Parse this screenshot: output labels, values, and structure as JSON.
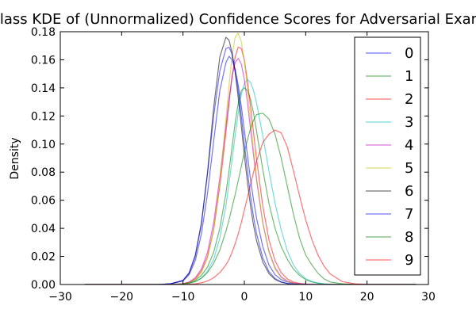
{
  "chart_data": {
    "type": "line",
    "title": "Per-class KDE of (Unnormalized) Confidence Scores for Adversarial Examples",
    "xlabel": "",
    "ylabel": "Density",
    "xlim": [
      -30,
      30
    ],
    "ylim": [
      0,
      0.18
    ],
    "xticks": [
      -30,
      -20,
      -10,
      0,
      10,
      20,
      30
    ],
    "yticks": [
      0.0,
      0.02,
      0.04,
      0.06,
      0.08,
      0.1,
      0.12,
      0.14,
      0.16,
      0.18
    ],
    "xtick_labels": [
      "−30",
      "−20",
      "−10",
      "0",
      "10",
      "20",
      "30"
    ],
    "ytick_labels": [
      "0.00",
      "0.02",
      "0.04",
      "0.06",
      "0.08",
      "0.10",
      "0.12",
      "0.14",
      "0.16",
      "0.18"
    ],
    "grid": false,
    "legend_position": "upper-right",
    "x": [
      -26,
      -22,
      -18,
      -14,
      -12,
      -10,
      -9,
      -8,
      -7,
      -6,
      -5,
      -4,
      -3,
      -2.5,
      -2,
      -1.5,
      -1,
      -0.5,
      0,
      0.5,
      1,
      1.5,
      2,
      3,
      4,
      5,
      6,
      7,
      8,
      9,
      10,
      11,
      12,
      13,
      14,
      16,
      18,
      20,
      22,
      24,
      26,
      28
    ],
    "series": [
      {
        "name": "0",
        "color": "#0000ff",
        "values": [
          0.0,
          0.0,
          0.0,
          0.0,
          0.0005,
          0.0025,
          0.007,
          0.017,
          0.036,
          0.065,
          0.102,
          0.138,
          0.158,
          0.1625,
          0.16,
          0.153,
          0.142,
          0.127,
          0.11,
          0.092,
          0.075,
          0.06,
          0.047,
          0.027,
          0.014,
          0.007,
          0.0035,
          0.0018,
          0.0009,
          0.0004,
          0.0002,
          0.0001,
          0.0,
          0.0,
          0.0,
          0.0,
          0.0,
          0.0,
          0.0,
          0.0,
          0.0,
          0.0
        ]
      },
      {
        "name": "1",
        "color": "#008000",
        "values": [
          0.0,
          0.0,
          0.0,
          0.0,
          0.0,
          0.0005,
          0.0012,
          0.003,
          0.0065,
          0.0125,
          0.023,
          0.04,
          0.065,
          0.081,
          0.098,
          0.115,
          0.129,
          0.138,
          0.14,
          0.138,
          0.132,
          0.122,
          0.109,
          0.082,
          0.058,
          0.04,
          0.027,
          0.018,
          0.011,
          0.0065,
          0.0035,
          0.0018,
          0.0009,
          0.0004,
          0.0002,
          0.0001,
          0.0,
          0.0,
          0.0,
          0.0,
          0.0,
          0.0
        ]
      },
      {
        "name": "2",
        "color": "#ff0000",
        "values": [
          0.0,
          0.0,
          0.0,
          0.0,
          0.0,
          0.0005,
          0.0015,
          0.004,
          0.0095,
          0.02,
          0.039,
          0.07,
          0.108,
          0.129,
          0.148,
          0.162,
          0.169,
          0.168,
          0.16,
          0.145,
          0.127,
          0.108,
          0.089,
          0.056,
          0.032,
          0.017,
          0.0085,
          0.004,
          0.0018,
          0.0008,
          0.0003,
          0.0001,
          0.0,
          0.0,
          0.0,
          0.0,
          0.0,
          0.0,
          0.0,
          0.0,
          0.0,
          0.0
        ]
      },
      {
        "name": "3",
        "color": "#00bfbf",
        "values": [
          0.0,
          0.0,
          0.0,
          0.0,
          0.0,
          0.0003,
          0.0008,
          0.002,
          0.0045,
          0.0095,
          0.018,
          0.033,
          0.056,
          0.072,
          0.089,
          0.106,
          0.122,
          0.135,
          0.143,
          0.146,
          0.144,
          0.138,
          0.129,
          0.106,
          0.081,
          0.058,
          0.039,
          0.024,
          0.014,
          0.0078,
          0.0042,
          0.0022,
          0.0011,
          0.0005,
          0.0002,
          0.0001,
          0.0,
          0.0,
          0.0,
          0.0,
          0.0,
          0.0
        ]
      },
      {
        "name": "4",
        "color": "#bf00bf",
        "values": [
          0.0,
          0.0,
          0.0,
          0.0,
          0.0,
          0.0006,
          0.0018,
          0.0048,
          0.011,
          0.023,
          0.044,
          0.076,
          0.113,
          0.132,
          0.148,
          0.158,
          0.161,
          0.157,
          0.146,
          0.13,
          0.111,
          0.092,
          0.074,
          0.044,
          0.024,
          0.012,
          0.0056,
          0.0025,
          0.0011,
          0.0005,
          0.0002,
          0.0001,
          0.0,
          0.0,
          0.0,
          0.0,
          0.0,
          0.0,
          0.0,
          0.0,
          0.0,
          0.0
        ]
      },
      {
        "name": "5",
        "color": "#bfbf00",
        "values": [
          0.0,
          0.0,
          0.0,
          0.0,
          0.0,
          0.0004,
          0.0012,
          0.0034,
          0.0085,
          0.019,
          0.039,
          0.073,
          0.118,
          0.142,
          0.163,
          0.176,
          0.179,
          0.173,
          0.159,
          0.14,
          0.118,
          0.096,
          0.076,
          0.044,
          0.023,
          0.011,
          0.0048,
          0.002,
          0.0008,
          0.0003,
          0.0001,
          0.0,
          0.0,
          0.0,
          0.0,
          0.0,
          0.0,
          0.0,
          0.0,
          0.0,
          0.0,
          0.0
        ]
      },
      {
        "name": "6",
        "color": "#000000",
        "values": [
          0.0,
          0.0,
          0.0,
          0.0,
          0.0005,
          0.0028,
          0.008,
          0.02,
          0.043,
          0.08,
          0.126,
          0.162,
          0.176,
          0.174,
          0.165,
          0.151,
          0.133,
          0.113,
          0.092,
          0.073,
          0.056,
          0.042,
          0.031,
          0.016,
          0.0078,
          0.0036,
          0.0016,
          0.0007,
          0.0003,
          0.0001,
          0.0,
          0.0,
          0.0,
          0.0,
          0.0,
          0.0,
          0.0,
          0.0,
          0.0,
          0.0,
          0.0,
          0.0
        ]
      },
      {
        "name": "7",
        "color": "#0000ff",
        "values": [
          0.0,
          0.0,
          0.0,
          0.0,
          0.0006,
          0.003,
          0.0085,
          0.021,
          0.044,
          0.079,
          0.12,
          0.152,
          0.168,
          0.169,
          0.164,
          0.153,
          0.138,
          0.12,
          0.1,
          0.081,
          0.063,
          0.048,
          0.036,
          0.019,
          0.0093,
          0.0043,
          0.0019,
          0.0008,
          0.0003,
          0.0001,
          0.0,
          0.0,
          0.0,
          0.0,
          0.0,
          0.0,
          0.0,
          0.0,
          0.0,
          0.0,
          0.0,
          0.0
        ]
      },
      {
        "name": "8",
        "color": "#008000",
        "values": [
          0.0,
          0.0,
          0.0,
          0.0,
          0.0,
          0.0004,
          0.001,
          0.0022,
          0.0045,
          0.0085,
          0.015,
          0.0245,
          0.038,
          0.046,
          0.055,
          0.064,
          0.074,
          0.084,
          0.094,
          0.103,
          0.111,
          0.117,
          0.121,
          0.122,
          0.118,
          0.107,
          0.09,
          0.07,
          0.05,
          0.033,
          0.021,
          0.014,
          0.008,
          0.004,
          0.0018,
          0.0005,
          0.0001,
          0.0,
          0.0,
          0.0,
          0.0,
          0.0
        ]
      },
      {
        "name": "9",
        "color": "#ff0000",
        "values": [
          0.0,
          0.0,
          0.0,
          0.0,
          0.0,
          0.0,
          0.0002,
          0.0005,
          0.0012,
          0.0025,
          0.0048,
          0.0085,
          0.014,
          0.018,
          0.023,
          0.029,
          0.036,
          0.044,
          0.053,
          0.062,
          0.071,
          0.08,
          0.088,
          0.101,
          0.107,
          0.11,
          0.108,
          0.098,
          0.081,
          0.063,
          0.046,
          0.032,
          0.021,
          0.013,
          0.0075,
          0.002,
          0.0005,
          0.0001,
          0.0,
          0.0,
          0.0,
          0.0
        ]
      }
    ]
  }
}
